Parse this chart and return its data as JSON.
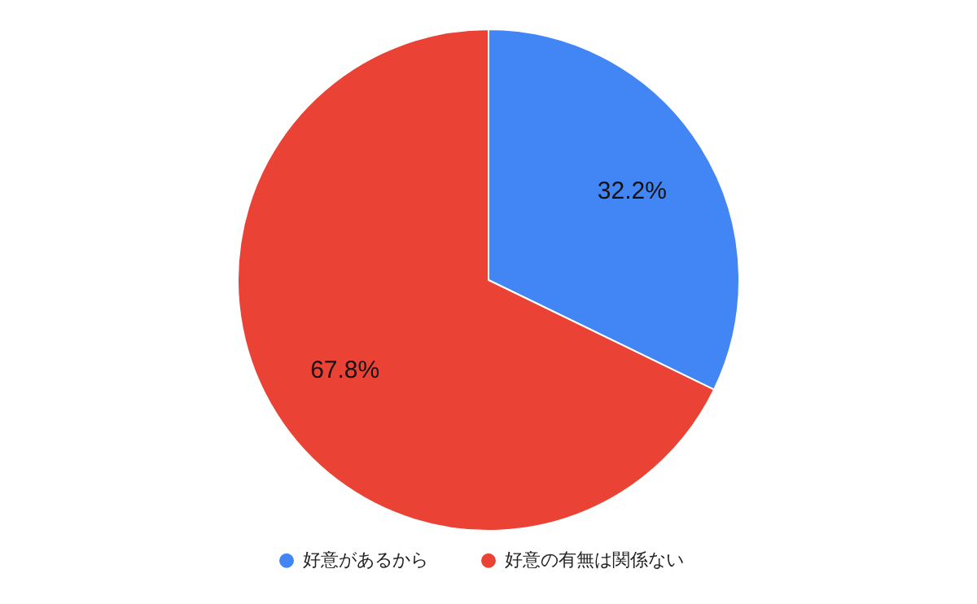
{
  "chart_data": {
    "type": "pie",
    "categories": [
      "好意があるから",
      "好意の有無は関係ない"
    ],
    "values": [
      32.2,
      67.8
    ],
    "colors": [
      "#4285f4",
      "#ea4335"
    ],
    "value_labels": [
      "32.2%",
      "67.8%"
    ],
    "legend": "bottom"
  }
}
